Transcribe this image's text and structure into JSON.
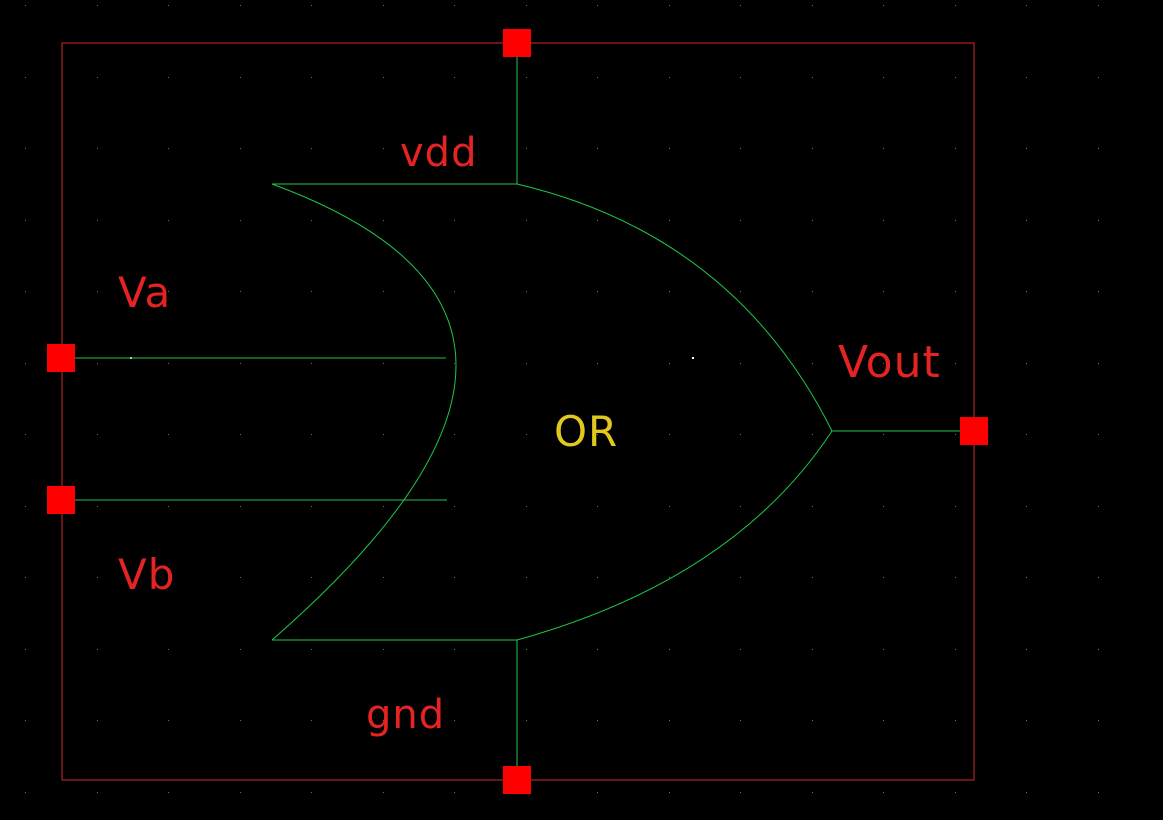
{
  "schematic": {
    "gate_label": "OR",
    "pins": {
      "vdd": "vdd",
      "gnd": "gnd",
      "va": "Va",
      "vb": "Vb",
      "vout": "Vout"
    }
  },
  "colors": {
    "background": "#000000",
    "boundary": "#d42a2a",
    "wire": "#1fc64a",
    "pin": "#ff0000",
    "pin_label": "#e52323",
    "gate_label": "#e0c81e",
    "grid_dot": "#6e6e6e"
  }
}
